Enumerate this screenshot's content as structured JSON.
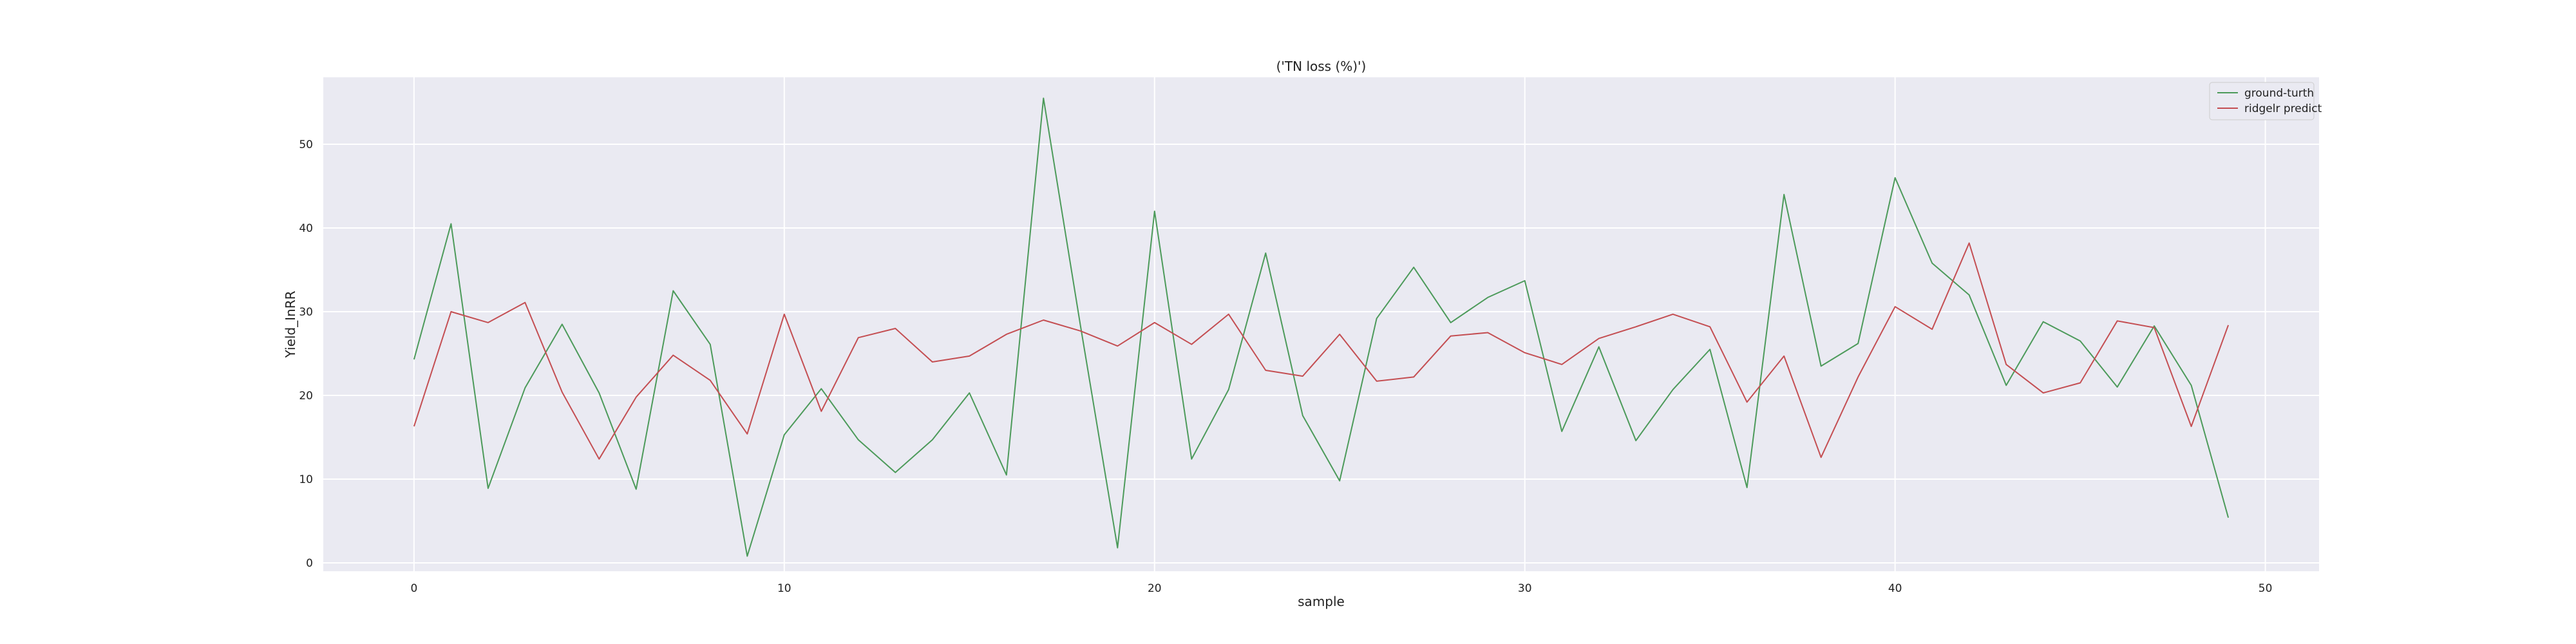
{
  "chart_data": {
    "type": "line",
    "title": "('TN loss (%)')",
    "xlabel": "sample",
    "ylabel": "Yield_InRR",
    "xlim": [
      -2.45,
      51.45
    ],
    "ylim": [
      -1.0,
      58.0
    ],
    "x_ticks": [
      0,
      10,
      20,
      30,
      40,
      50
    ],
    "y_ticks": [
      0,
      10,
      20,
      30,
      40,
      50
    ],
    "grid": true,
    "legend_position": "top-right",
    "x": [
      0,
      1,
      2,
      3,
      4,
      5,
      6,
      7,
      8,
      9,
      10,
      11,
      12,
      13,
      14,
      15,
      16,
      17,
      18,
      19,
      20,
      21,
      22,
      23,
      24,
      25,
      26,
      27,
      28,
      29,
      30,
      31,
      32,
      33,
      34,
      35,
      36,
      37,
      38,
      39,
      40,
      41,
      42,
      43,
      44,
      45,
      46,
      47,
      48,
      49
    ],
    "series": [
      {
        "name": "ground-turth",
        "color": "#4c9a5a",
        "values": [
          24.3,
          40.5,
          8.9,
          20.9,
          28.5,
          20.3,
          8.8,
          32.5,
          26.1,
          0.8,
          15.3,
          20.8,
          14.7,
          10.8,
          14.7,
          20.3,
          10.5,
          55.5,
          28.3,
          1.8,
          42.0,
          12.4,
          20.7,
          37.0,
          17.6,
          9.8,
          29.2,
          35.3,
          28.7,
          31.7,
          33.7,
          15.7,
          25.8,
          14.6,
          20.7,
          25.5,
          9.0,
          44.0,
          23.5,
          26.2,
          46.0,
          35.8,
          32.0,
          21.2,
          28.8,
          26.5,
          21.0,
          28.3,
          21.2,
          5.4
        ]
      },
      {
        "name": "ridgelr predict",
        "color": "#c44e52",
        "values": [
          16.3,
          30.0,
          28.7,
          31.1,
          20.4,
          12.4,
          19.8,
          24.8,
          21.8,
          15.4,
          29.7,
          18.1,
          26.9,
          28.0,
          24.0,
          24.7,
          27.3,
          29.0,
          27.7,
          25.9,
          28.7,
          26.1,
          29.7,
          23.0,
          22.3,
          27.3,
          21.7,
          22.2,
          27.1,
          27.5,
          25.1,
          23.7,
          26.8,
          28.2,
          29.7,
          28.2,
          19.2,
          24.7,
          12.6,
          22.2,
          30.6,
          27.9,
          38.2,
          23.7,
          20.3,
          21.5,
          28.9,
          28.1,
          16.3,
          28.4
        ]
      }
    ]
  }
}
